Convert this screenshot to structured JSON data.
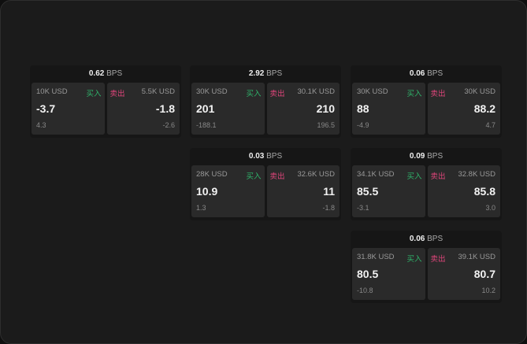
{
  "unit": "BPS",
  "buy_label": "买入",
  "sell_label": "卖出",
  "cards": [
    {
      "spread": "0.62",
      "buy": {
        "amount": "10K USD",
        "price": "-3.7",
        "change": "4.3"
      },
      "sell": {
        "amount": "5.5K USD",
        "price": "-1.8",
        "change": "-2.6"
      }
    },
    {
      "spread": "2.92",
      "buy": {
        "amount": "30K USD",
        "price": "201",
        "change": "-188.1"
      },
      "sell": {
        "amount": "30.1K USD",
        "price": "210",
        "change": "196.5"
      }
    },
    {
      "spread": "0.06",
      "buy": {
        "amount": "30K USD",
        "price": "88",
        "change": "-4.9"
      },
      "sell": {
        "amount": "30K USD",
        "price": "88.2",
        "change": "4.7"
      }
    },
    {
      "spread": "0.03",
      "buy": {
        "amount": "28K USD",
        "price": "10.9",
        "change": "1.3"
      },
      "sell": {
        "amount": "32.6K USD",
        "price": "11",
        "change": "-1.8"
      }
    },
    {
      "spread": "0.09",
      "buy": {
        "amount": "34.1K USD",
        "price": "85.5",
        "change": "-3.1"
      },
      "sell": {
        "amount": "32.8K USD",
        "price": "85.8",
        "change": "3.0"
      }
    },
    {
      "spread": "0.06",
      "buy": {
        "amount": "31.8K USD",
        "price": "80.5",
        "change": "-10.8"
      },
      "sell": {
        "amount": "39.1K USD",
        "price": "80.7",
        "change": "10.2"
      }
    }
  ],
  "colors": {
    "buy": "#2fb36a",
    "sell": "#e0457b"
  }
}
